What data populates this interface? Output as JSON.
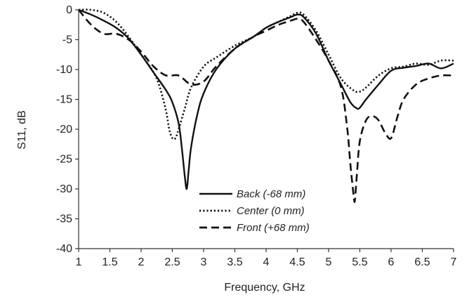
{
  "chart_data": {
    "type": "line",
    "xlabel": "Frequency, GHz",
    "ylabel": "S11, dB",
    "xlim": [
      1,
      7
    ],
    "ylim": [
      -40,
      0
    ],
    "xticks": [
      1,
      1.5,
      2,
      2.5,
      3,
      3.5,
      4,
      4.5,
      5,
      5.5,
      6,
      6.5,
      7
    ],
    "xtick_labels": [
      "1",
      "1.5",
      "2",
      "2.5",
      "3",
      "3.5",
      "4",
      "4.5",
      "5",
      "5.5",
      "6",
      "6.5",
      "7"
    ],
    "yticks": [
      0,
      -5,
      -10,
      -15,
      -20,
      -25,
      -30,
      -35,
      -40
    ],
    "ytick_labels": [
      "0",
      "-5",
      "-10",
      "-15",
      "-20",
      "-25",
      "-30",
      "-35",
      "-40"
    ],
    "grid": false,
    "legend_position": "bottom-center",
    "series": [
      {
        "name": "Back (-68 mm)",
        "line_style": "solid",
        "color": "#111111",
        "x": [
          1.0,
          1.2,
          1.4,
          1.6,
          1.8,
          2.0,
          2.2,
          2.4,
          2.5,
          2.6,
          2.65,
          2.7,
          2.73,
          2.76,
          2.8,
          2.9,
          3.0,
          3.2,
          3.5,
          3.8,
          4.0,
          4.2,
          4.4,
          4.5,
          4.6,
          4.8,
          5.0,
          5.2,
          5.35,
          5.45,
          5.5,
          5.6,
          5.8,
          6.0,
          6.2,
          6.4,
          6.6,
          6.8,
          7.0
        ],
        "y": [
          0,
          -0.8,
          -1.8,
          -3.0,
          -4.8,
          -7.5,
          -10.5,
          -13.5,
          -15.5,
          -19.0,
          -23.0,
          -28.0,
          -30.0,
          -27.0,
          -23.0,
          -17.5,
          -14.0,
          -10.0,
          -6.5,
          -4.5,
          -3.0,
          -2.0,
          -1.2,
          -0.8,
          -1.2,
          -4.0,
          -8.5,
          -12.5,
          -15.5,
          -16.5,
          -16.4,
          -15.0,
          -12.5,
          -10.2,
          -9.7,
          -9.4,
          -9.0,
          -9.8,
          -9.0
        ]
      },
      {
        "name": "Center (0 mm)",
        "line_style": "dotted",
        "color": "#111111",
        "x": [
          1.0,
          1.2,
          1.4,
          1.6,
          1.8,
          2.0,
          2.2,
          2.3,
          2.4,
          2.45,
          2.5,
          2.55,
          2.6,
          2.7,
          2.8,
          3.0,
          3.2,
          3.5,
          3.8,
          4.0,
          4.2,
          4.4,
          4.5,
          4.6,
          4.8,
          5.0,
          5.2,
          5.4,
          5.5,
          5.6,
          5.8,
          6.0,
          6.2,
          6.4,
          6.6,
          6.8,
          7.0
        ],
        "y": [
          0,
          0,
          -0.5,
          -2.0,
          -4.5,
          -7.5,
          -10.5,
          -13.0,
          -17.0,
          -20.0,
          -21.5,
          -21.5,
          -20.0,
          -16.5,
          -13.0,
          -9.5,
          -8.0,
          -6.0,
          -4.5,
          -3.0,
          -2.0,
          -1.0,
          -0.5,
          -0.8,
          -3.5,
          -7.5,
          -11.5,
          -13.5,
          -13.7,
          -13.0,
          -11.0,
          -9.8,
          -9.5,
          -9.0,
          -9.2,
          -8.5,
          -8.5
        ]
      },
      {
        "name": "Front (+68 mm)",
        "line_style": "dashed",
        "color": "#111111",
        "x": [
          1.0,
          1.2,
          1.4,
          1.6,
          1.8,
          2.0,
          2.2,
          2.4,
          2.6,
          2.8,
          3.0,
          3.2,
          3.5,
          3.8,
          4.0,
          4.2,
          4.4,
          4.5,
          4.6,
          4.8,
          5.0,
          5.2,
          5.3,
          5.35,
          5.4,
          5.42,
          5.45,
          5.5,
          5.6,
          5.7,
          5.8,
          5.9,
          6.0,
          6.1,
          6.2,
          6.4,
          6.6,
          6.8,
          7.0
        ],
        "y": [
          0,
          -2.5,
          -4.0,
          -4.0,
          -5.0,
          -7.0,
          -9.5,
          -11.0,
          -11.0,
          -12.5,
          -12.0,
          -9.5,
          -6.5,
          -4.5,
          -3.5,
          -2.5,
          -1.8,
          -1.5,
          -2.0,
          -5.0,
          -8.5,
          -13.0,
          -20.0,
          -26.0,
          -31.0,
          -32.0,
          -28.0,
          -22.0,
          -18.5,
          -17.8,
          -18.5,
          -20.5,
          -21.5,
          -18.0,
          -15.0,
          -12.5,
          -11.5,
          -11.0,
          -11.0
        ]
      }
    ]
  }
}
